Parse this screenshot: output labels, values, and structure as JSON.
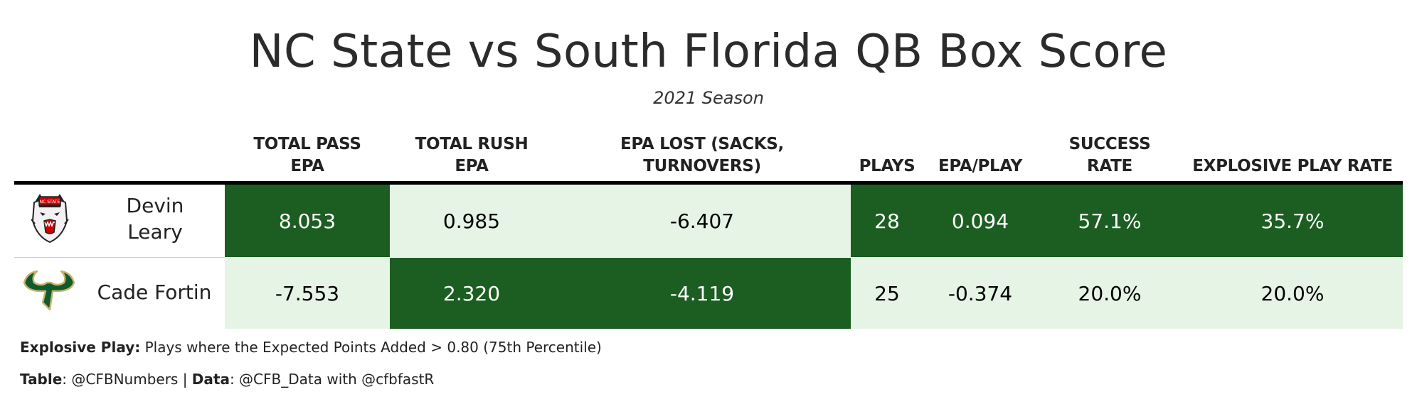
{
  "chart_data": {
    "type": "table",
    "title": "NC State vs South Florida QB Box Score",
    "subtitle": "2021 Season",
    "columns": [
      "TOTAL PASS EPA",
      "TOTAL RUSH EPA",
      "EPA LOST (SACKS, TURNOVERS)",
      "PLAYS",
      "EPA/PLAY",
      "SUCCESS RATE",
      "EXPLOSIVE PLAY RATE"
    ],
    "rows": [
      {
        "player": "Devin Leary",
        "team_logo": "nc-state-wolf-logo",
        "values": [
          "8.053",
          "0.985",
          "-6.407",
          "28",
          "0.094",
          "57.1%",
          "35.7%"
        ]
      },
      {
        "player": "Cade Fortin",
        "team_logo": "usf-bull-horns-logo",
        "values": [
          "-7.553",
          "2.320",
          "-4.119",
          "25",
          "-0.374",
          "20.0%",
          "20.0%"
        ]
      }
    ],
    "colors": {
      "high": "#1c5e22",
      "low": "#e6f4e6",
      "text_on_high": "#ffffff",
      "text_on_low": "#000000"
    }
  },
  "headers": {
    "pass_epa": [
      "TOTAL PASS",
      "EPA"
    ],
    "rush_epa": [
      "TOTAL RUSH",
      "EPA"
    ],
    "epa_lost": [
      "EPA LOST (SACKS,",
      "TURNOVERS)"
    ],
    "plays": "PLAYS",
    "epa_play": "EPA/PLAY",
    "success": [
      "SUCCESS",
      "RATE"
    ],
    "explosive": "EXPLOSIVE PLAY RATE"
  },
  "rows_display": {
    "r1": {
      "name_line1": "Devin",
      "name_line2": "Leary",
      "pass": "8.053",
      "rush": "0.985",
      "lost": "-6.407",
      "plays": "28",
      "epa_play": "0.094",
      "success": "57.1%",
      "explosive": "35.7%"
    },
    "r2": {
      "name": "Cade Fortin",
      "pass": "-7.553",
      "rush": "2.320",
      "lost": "-4.119",
      "plays": "25",
      "epa_play": "-0.374",
      "success": "20.0%",
      "explosive": "20.0%"
    }
  },
  "footer": {
    "note_label": "Explosive Play:",
    "note_text": " Plays where the Expected Points Added > 0.80 (75th Percentile)",
    "table_label": "Table",
    "table_text": ": @CFBNumbers | ",
    "data_label": "Data",
    "data_text": ": @CFB_Data with @cfbfastR"
  }
}
